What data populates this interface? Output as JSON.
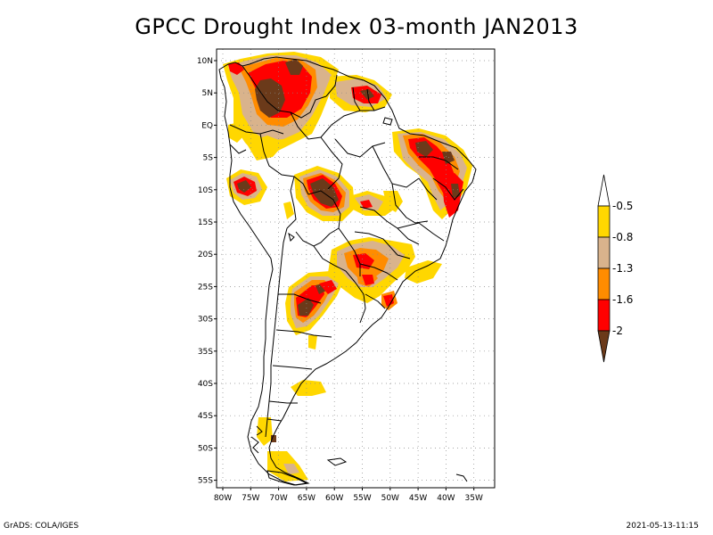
{
  "title": "GPCC Drought Index 03-month JAN2013",
  "footer": {
    "left": "GrADS: COLA/IGES",
    "right": "2021-05-13-11:15"
  },
  "colors": {
    "lt_minus_2": "#6b3a1a",
    "m2_m16": "#ff0000",
    "m16_m13": "#ff8c00",
    "m13_m08": "#d9b38c",
    "m08_m05": "#ffd700",
    "gt_m05": "#ffffff",
    "country_borders": "#000000",
    "grid": "#8a8a8a"
  },
  "map": {
    "lat_labels": [
      "10N",
      "5N",
      "EQ",
      "5S",
      "10S",
      "15S",
      "20S",
      "25S",
      "30S",
      "35S",
      "40S",
      "45S",
      "50S",
      "55S"
    ],
    "lon_labels": [
      "80W",
      "75W",
      "70W",
      "65W",
      "60W",
      "55W",
      "50W",
      "45W",
      "40W",
      "35W"
    ]
  },
  "legend": {
    "ticks": [
      "-0.5",
      "-0.8",
      "-1.3",
      "-1.6",
      "-2"
    ]
  }
}
